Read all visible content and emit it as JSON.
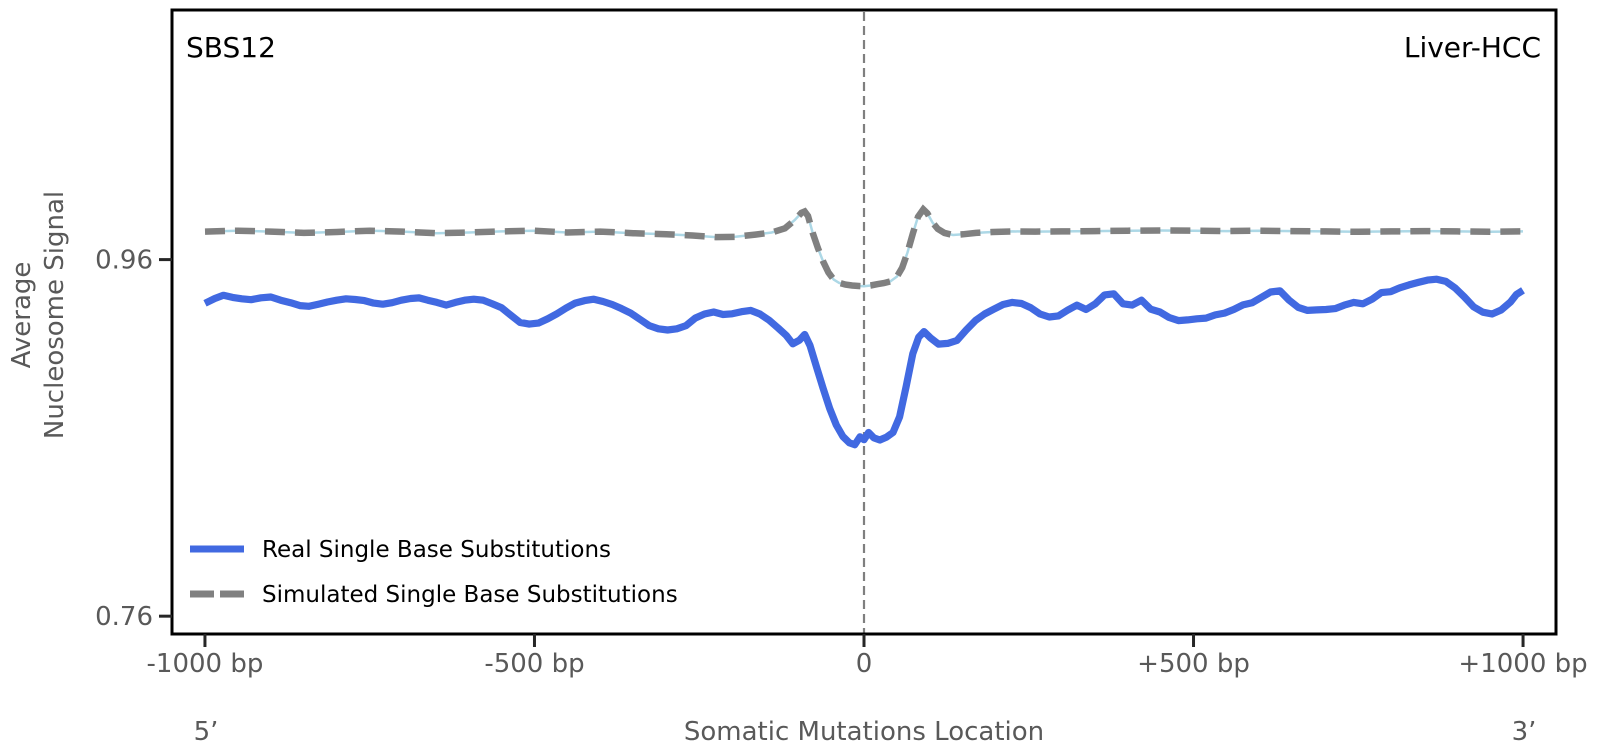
{
  "figure": {
    "signature_label": "SBS12",
    "cancer_type_label": "Liver-HCC",
    "ylabel_line1": "Average",
    "ylabel_line2": "Nucleosome Signal",
    "xlabel": "Somatic Mutations Location",
    "five_prime_label": "5’",
    "three_prime_label": "3’"
  },
  "colors": {
    "real_line": "#4169E1",
    "simulated_line": "#808080",
    "simulated_underlay": "#ADD8E6",
    "guideline": "#7f7f7f",
    "spine": "#000000",
    "tick_text": "#595959",
    "title_text": "#000000"
  },
  "chart_data": {
    "type": "line",
    "title": "",
    "xlabel": "Somatic Mutations Location",
    "ylabel": "Average Nucleosome Signal",
    "x_unit": "bp",
    "xlim": [
      -1050,
      1050
    ],
    "ylim": [
      0.75,
      1.1
    ],
    "grid": false,
    "legend_position": "lower left",
    "center_guide_x": 0,
    "x_ticks": [
      {
        "bp": -1000,
        "label": "-1000 bp"
      },
      {
        "bp": -500,
        "label": "-500 bp"
      },
      {
        "bp": 0,
        "label": "0"
      },
      {
        "bp": 500,
        "label": "+500 bp"
      },
      {
        "bp": 1000,
        "label": "+1000 bp"
      }
    ],
    "y_ticks": [
      {
        "value": 0.96,
        "label": "0.96"
      },
      {
        "value": 0.76,
        "label": "0.76"
      }
    ],
    "series": [
      {
        "name": "Real Single Base Substitutions",
        "style": "solid",
        "color": "#4169E1",
        "points": [
          [
            -1000,
            0.9355
          ],
          [
            -985,
            0.9382
          ],
          [
            -972,
            0.94
          ],
          [
            -958,
            0.9388
          ],
          [
            -944,
            0.938
          ],
          [
            -930,
            0.9375
          ],
          [
            -915,
            0.9386
          ],
          [
            -900,
            0.939
          ],
          [
            -885,
            0.9372
          ],
          [
            -870,
            0.9358
          ],
          [
            -856,
            0.9342
          ],
          [
            -842,
            0.9338
          ],
          [
            -828,
            0.935
          ],
          [
            -814,
            0.9362
          ],
          [
            -800,
            0.9372
          ],
          [
            -786,
            0.938
          ],
          [
            -772,
            0.9376
          ],
          [
            -758,
            0.937
          ],
          [
            -744,
            0.9356
          ],
          [
            -730,
            0.935
          ],
          [
            -716,
            0.9358
          ],
          [
            -702,
            0.9372
          ],
          [
            -688,
            0.9382
          ],
          [
            -675,
            0.9385
          ],
          [
            -662,
            0.9372
          ],
          [
            -648,
            0.936
          ],
          [
            -634,
            0.9345
          ],
          [
            -620,
            0.936
          ],
          [
            -606,
            0.9372
          ],
          [
            -592,
            0.9378
          ],
          [
            -578,
            0.9372
          ],
          [
            -564,
            0.9352
          ],
          [
            -550,
            0.933
          ],
          [
            -536,
            0.9288
          ],
          [
            -522,
            0.9248
          ],
          [
            -508,
            0.9238
          ],
          [
            -494,
            0.9244
          ],
          [
            -480,
            0.9268
          ],
          [
            -466,
            0.9296
          ],
          [
            -452,
            0.9328
          ],
          [
            -438,
            0.9356
          ],
          [
            -424,
            0.937
          ],
          [
            -410,
            0.9378
          ],
          [
            -396,
            0.9365
          ],
          [
            -382,
            0.9348
          ],
          [
            -368,
            0.9325
          ],
          [
            -354,
            0.93
          ],
          [
            -340,
            0.9265
          ],
          [
            -326,
            0.923
          ],
          [
            -312,
            0.9212
          ],
          [
            -298,
            0.9205
          ],
          [
            -284,
            0.9212
          ],
          [
            -270,
            0.923
          ],
          [
            -256,
            0.9272
          ],
          [
            -242,
            0.9295
          ],
          [
            -228,
            0.9306
          ],
          [
            -214,
            0.9292
          ],
          [
            -200,
            0.9296
          ],
          [
            -186,
            0.9308
          ],
          [
            -172,
            0.9315
          ],
          [
            -158,
            0.9295
          ],
          [
            -144,
            0.926
          ],
          [
            -130,
            0.9215
          ],
          [
            -118,
            0.9175
          ],
          [
            -108,
            0.9128
          ],
          [
            -98,
            0.9148
          ],
          [
            -90,
            0.918
          ],
          [
            -82,
            0.9118
          ],
          [
            -72,
            0.8998
          ],
          [
            -62,
            0.8878
          ],
          [
            -52,
            0.8765
          ],
          [
            -42,
            0.8672
          ],
          [
            -32,
            0.8608
          ],
          [
            -22,
            0.8572
          ],
          [
            -14,
            0.8562
          ],
          [
            -6,
            0.8606
          ],
          [
            0,
            0.859
          ],
          [
            7,
            0.863
          ],
          [
            15,
            0.86
          ],
          [
            24,
            0.8588
          ],
          [
            34,
            0.8604
          ],
          [
            44,
            0.863
          ],
          [
            54,
            0.8718
          ],
          [
            64,
            0.889
          ],
          [
            74,
            0.9072
          ],
          [
            83,
            0.9165
          ],
          [
            91,
            0.9196
          ],
          [
            101,
            0.916
          ],
          [
            113,
            0.9126
          ],
          [
            127,
            0.913
          ],
          [
            141,
            0.9146
          ],
          [
            155,
            0.9205
          ],
          [
            169,
            0.9258
          ],
          [
            183,
            0.9295
          ],
          [
            197,
            0.9322
          ],
          [
            211,
            0.9348
          ],
          [
            225,
            0.936
          ],
          [
            239,
            0.9354
          ],
          [
            253,
            0.933
          ],
          [
            267,
            0.9295
          ],
          [
            281,
            0.9278
          ],
          [
            295,
            0.9284
          ],
          [
            309,
            0.9316
          ],
          [
            323,
            0.9345
          ],
          [
            337,
            0.932
          ],
          [
            351,
            0.9352
          ],
          [
            365,
            0.9402
          ],
          [
            379,
            0.9408
          ],
          [
            393,
            0.9352
          ],
          [
            407,
            0.9345
          ],
          [
            421,
            0.9372
          ],
          [
            435,
            0.9322
          ],
          [
            449,
            0.9306
          ],
          [
            463,
            0.9275
          ],
          [
            477,
            0.9258
          ],
          [
            491,
            0.9262
          ],
          [
            505,
            0.9268
          ],
          [
            519,
            0.9272
          ],
          [
            533,
            0.929
          ],
          [
            547,
            0.93
          ],
          [
            561,
            0.932
          ],
          [
            575,
            0.9346
          ],
          [
            589,
            0.9358
          ],
          [
            603,
            0.9388
          ],
          [
            617,
            0.9418
          ],
          [
            631,
            0.9425
          ],
          [
            645,
            0.9372
          ],
          [
            659,
            0.9332
          ],
          [
            673,
            0.9315
          ],
          [
            687,
            0.9318
          ],
          [
            701,
            0.932
          ],
          [
            715,
            0.9325
          ],
          [
            729,
            0.9345
          ],
          [
            743,
            0.936
          ],
          [
            757,
            0.9352
          ],
          [
            771,
            0.9378
          ],
          [
            785,
            0.9415
          ],
          [
            799,
            0.942
          ],
          [
            813,
            0.9442
          ],
          [
            827,
            0.9458
          ],
          [
            841,
            0.9472
          ],
          [
            855,
            0.9485
          ],
          [
            869,
            0.949
          ],
          [
            883,
            0.9478
          ],
          [
            897,
            0.944
          ],
          [
            911,
            0.939
          ],
          [
            925,
            0.9335
          ],
          [
            939,
            0.9305
          ],
          [
            953,
            0.9295
          ],
          [
            967,
            0.9318
          ],
          [
            981,
            0.9362
          ],
          [
            990,
            0.9405
          ],
          [
            1000,
            0.9428
          ]
        ]
      },
      {
        "name": "Simulated Single Base Substitutions",
        "style": "dashed",
        "color": "#808080",
        "underlay_color": "#ADD8E6",
        "points": [
          [
            -1000,
            0.9757
          ],
          [
            -950,
            0.9762
          ],
          [
            -900,
            0.9757
          ],
          [
            -850,
            0.975
          ],
          [
            -800,
            0.9755
          ],
          [
            -750,
            0.9762
          ],
          [
            -700,
            0.9757
          ],
          [
            -650,
            0.9748
          ],
          [
            -600,
            0.9752
          ],
          [
            -550,
            0.9758
          ],
          [
            -500,
            0.9762
          ],
          [
            -450,
            0.9752
          ],
          [
            -400,
            0.9757
          ],
          [
            -350,
            0.9748
          ],
          [
            -300,
            0.9742
          ],
          [
            -260,
            0.9735
          ],
          [
            -225,
            0.9726
          ],
          [
            -195,
            0.9728
          ],
          [
            -165,
            0.974
          ],
          [
            -140,
            0.9752
          ],
          [
            -120,
            0.9775
          ],
          [
            -105,
            0.9822
          ],
          [
            -95,
            0.9862
          ],
          [
            -90,
            0.987
          ],
          [
            -85,
            0.9845
          ],
          [
            -78,
            0.9752
          ],
          [
            -70,
            0.9665
          ],
          [
            -62,
            0.959
          ],
          [
            -54,
            0.9528
          ],
          [
            -46,
            0.9488
          ],
          [
            -38,
            0.947
          ],
          [
            -28,
            0.946
          ],
          [
            -18,
            0.9455
          ],
          [
            -8,
            0.9452
          ],
          [
            0,
            0.945
          ],
          [
            10,
            0.9455
          ],
          [
            20,
            0.9462
          ],
          [
            30,
            0.9468
          ],
          [
            40,
            0.9478
          ],
          [
            50,
            0.9505
          ],
          [
            58,
            0.9555
          ],
          [
            66,
            0.964
          ],
          [
            74,
            0.9745
          ],
          [
            82,
            0.984
          ],
          [
            90,
            0.9882
          ],
          [
            96,
            0.986
          ],
          [
            104,
            0.9808
          ],
          [
            112,
            0.9772
          ],
          [
            122,
            0.975
          ],
          [
            135,
            0.9738
          ],
          [
            150,
            0.9742
          ],
          [
            170,
            0.975
          ],
          [
            195,
            0.9755
          ],
          [
            225,
            0.9758
          ],
          [
            260,
            0.9757
          ],
          [
            300,
            0.9758
          ],
          [
            350,
            0.976
          ],
          [
            400,
            0.9762
          ],
          [
            450,
            0.9763
          ],
          [
            500,
            0.9762
          ],
          [
            550,
            0.976
          ],
          [
            600,
            0.9762
          ],
          [
            650,
            0.976
          ],
          [
            700,
            0.9758
          ],
          [
            750,
            0.9756
          ],
          [
            800,
            0.9758
          ],
          [
            850,
            0.976
          ],
          [
            900,
            0.9758
          ],
          [
            950,
            0.9756
          ],
          [
            1000,
            0.9758
          ]
        ]
      }
    ]
  }
}
